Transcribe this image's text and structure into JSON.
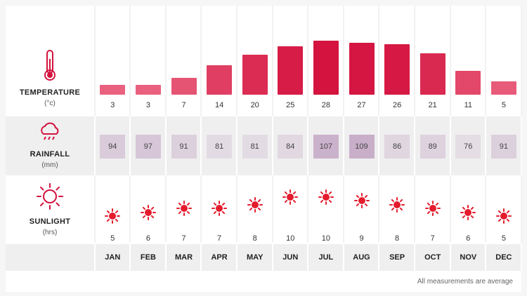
{
  "rows": {
    "temperature": {
      "title": "TEMPERATURE",
      "unit": "(°c)"
    },
    "rainfall": {
      "title": "RAINFALL",
      "unit": "(mm)"
    },
    "sunlight": {
      "title": "SUNLIGHT",
      "unit": "(hrs)"
    }
  },
  "colors": {
    "temperature_low": "#ec6a86",
    "temperature_high": "#d4133f",
    "rain_low": "#e4dde4",
    "rain_high": "#c8aec9",
    "sun": "#e41b2d"
  },
  "footnote": "All measurements are average",
  "chart_data": {
    "type": "bar",
    "categories": [
      "JAN",
      "FEB",
      "MAR",
      "APR",
      "MAY",
      "JUN",
      "JUL",
      "AUG",
      "SEP",
      "OCT",
      "NOV",
      "DEC"
    ],
    "series": [
      {
        "name": "TEMPERATURE",
        "values": [
          3,
          3,
          7,
          14,
          20,
          25,
          28,
          27,
          26,
          21,
          11,
          5
        ]
      },
      {
        "name": "RAINFALL",
        "values": [
          94,
          97,
          91,
          81,
          81,
          84,
          107,
          109,
          86,
          89,
          76,
          91
        ]
      },
      {
        "name": "SUNLIGHT",
        "values": [
          5,
          6,
          7,
          7,
          8,
          10,
          10,
          9,
          8,
          7,
          6,
          5
        ]
      }
    ],
    "ylim": [
      0,
      28
    ]
  }
}
